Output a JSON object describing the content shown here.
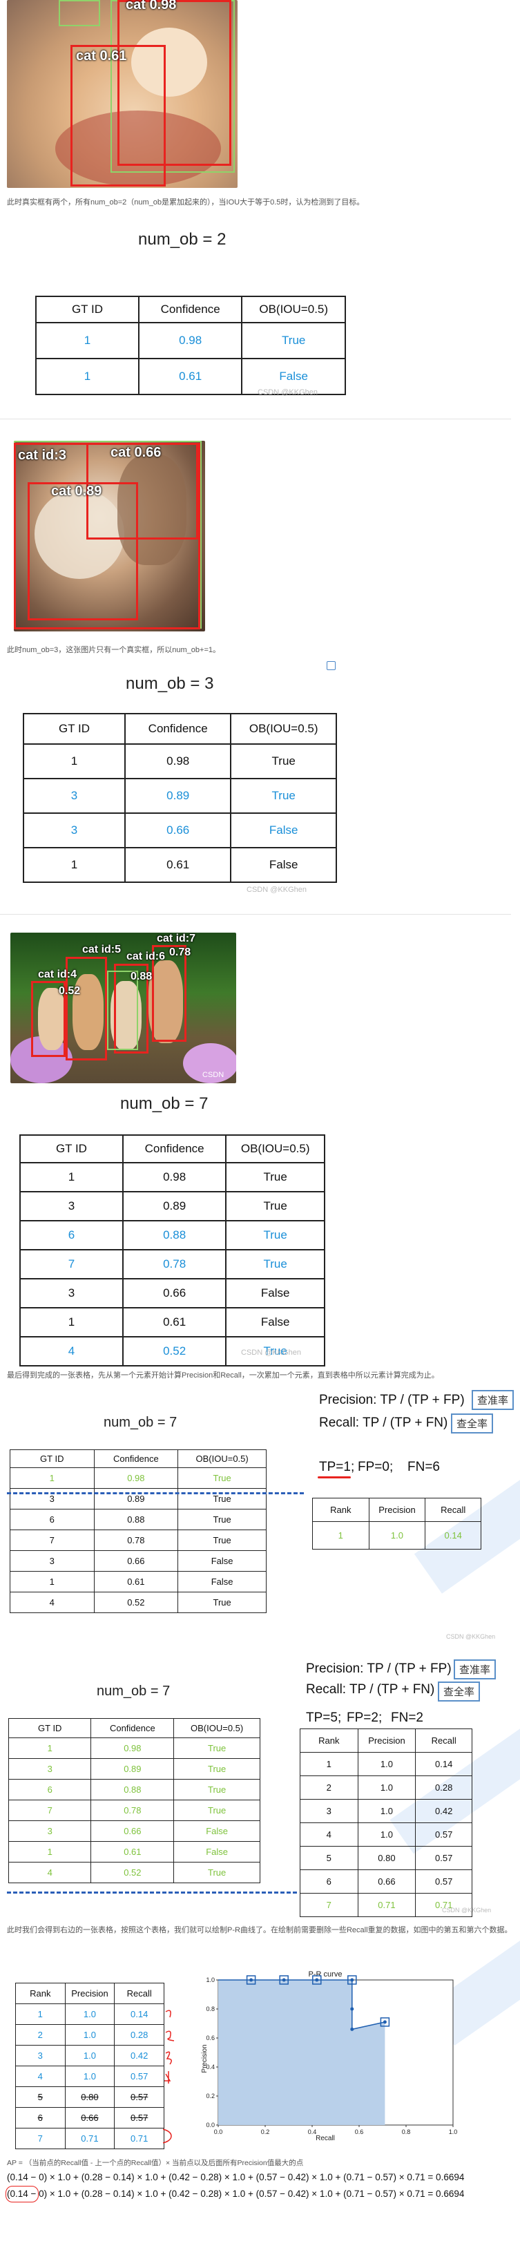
{
  "section1": {
    "labels": [
      "cat 0.98",
      "cat 0.61"
    ],
    "note": "此时真实框有两个，所有num_ob=2（num_ob是累加起来的），当IOU大于等于0.5时，认为检测到了目标。",
    "heading": "num_ob = 2",
    "headers": [
      "GT ID",
      "Confidence",
      "OB(IOU=0.5)"
    ],
    "rows": [
      [
        "1",
        "0.98",
        "True"
      ],
      [
        "1",
        "0.61",
        "False"
      ]
    ],
    "watermark": "CSDN @KKGhen"
  },
  "section2": {
    "labels": [
      "cat id:3",
      "cat 0.66",
      "cat 0.89"
    ],
    "note": "此时num_ob=3，这张图片只有一个真实框，所以num_ob+=1。",
    "heading": "num_ob = 3",
    "headers": [
      "GT ID",
      "Confidence",
      "OB(IOU=0.5)"
    ],
    "rows": [
      [
        "1",
        "0.98",
        "True"
      ],
      [
        "3",
        "0.89",
        "True"
      ],
      [
        "3",
        "0.66",
        "False"
      ],
      [
        "1",
        "0.61",
        "False"
      ]
    ],
    "watermark": "CSDN @KKGhen"
  },
  "section3": {
    "labels": [
      "cat id:7",
      "cat id:5",
      "cat id:6",
      "0.78",
      "cat id:4",
      "0.88",
      "0.52"
    ],
    "photo_mark": "CSDN",
    "heading": "num_ob = 7",
    "headers": [
      "GT ID",
      "Confidence",
      "OB(IOU=0.5)"
    ],
    "rows": [
      [
        "1",
        "0.98",
        "True"
      ],
      [
        "3",
        "0.89",
        "True"
      ],
      [
        "6",
        "0.88",
        "True"
      ],
      [
        "7",
        "0.78",
        "True"
      ],
      [
        "3",
        "0.66",
        "False"
      ],
      [
        "1",
        "0.61",
        "False"
      ],
      [
        "4",
        "0.52",
        "True"
      ]
    ],
    "watermark": "CSDN @KKGhen",
    "note": "最后得到完成的一张表格，先从第一个元素开始计算Precision和Recall，一次累加一个元素，直到表格中所以元素计算完成为止。"
  },
  "section4": {
    "heading": "num_ob = 7",
    "precision_formula": "Precision: TP / (TP + FP)",
    "recall_formula": "Recall: TP / (TP + FN)",
    "precision_button": "查准率",
    "recall_button": "查全率",
    "counts": [
      "TP=1;",
      "FP=0;",
      "FN=6"
    ],
    "headers": [
      "GT ID",
      "Confidence",
      "OB(IOU=0.5)"
    ],
    "rows": [
      [
        "1",
        "0.98",
        "True"
      ],
      [
        "3",
        "0.89",
        "True"
      ],
      [
        "6",
        "0.88",
        "True"
      ],
      [
        "7",
        "0.78",
        "True"
      ],
      [
        "3",
        "0.66",
        "False"
      ],
      [
        "1",
        "0.61",
        "False"
      ],
      [
        "4",
        "0.52",
        "True"
      ]
    ],
    "rank_headers": [
      "Rank",
      "Precision",
      "Recall"
    ],
    "rank_rows": [
      [
        "1",
        "1.0",
        "0.14"
      ]
    ],
    "watermark": "CSDN @KKGhen"
  },
  "section5": {
    "heading": "num_ob = 7",
    "precision_formula": "Precision: TP / (TP + FP)",
    "recall_formula": "Recall: TP / (TP + FN)",
    "precision_button": "查准率",
    "recall_button": "查全率",
    "counts": [
      "TP=5;",
      "FP=2;",
      "FN=2"
    ],
    "headers": [
      "GT ID",
      "Confidence",
      "OB(IOU=0.5)"
    ],
    "rows": [
      [
        "1",
        "0.98",
        "True"
      ],
      [
        "3",
        "0.89",
        "True"
      ],
      [
        "6",
        "0.88",
        "True"
      ],
      [
        "7",
        "0.78",
        "True"
      ],
      [
        "3",
        "0.66",
        "False"
      ],
      [
        "1",
        "0.61",
        "False"
      ],
      [
        "4",
        "0.52",
        "True"
      ]
    ],
    "rank_headers": [
      "Rank",
      "Precision",
      "Recall"
    ],
    "rank_rows": [
      [
        "1",
        "1.0",
        "0.14"
      ],
      [
        "2",
        "1.0",
        "0.28"
      ],
      [
        "3",
        "1.0",
        "0.42"
      ],
      [
        "4",
        "1.0",
        "0.57"
      ],
      [
        "5",
        "0.80",
        "0.57"
      ],
      [
        "6",
        "0.66",
        "0.57"
      ],
      [
        "7",
        "0.71",
        "0.71"
      ]
    ],
    "watermark": "CSDN @KKGhen",
    "note": "此时我们会得到右边的一张表格，按照这个表格，我们就可以绘制P-R曲线了。在绘制前需要删除一些Recall重复的数据，如图中的第五和第六个数据。"
  },
  "section6": {
    "rank_headers": [
      "Rank",
      "Precision",
      "Recall"
    ],
    "rank_rows": [
      [
        "1",
        "1.0",
        "0.14"
      ],
      [
        "2",
        "1.0",
        "0.28"
      ],
      [
        "3",
        "1.0",
        "0.42"
      ],
      [
        "4",
        "1.0",
        "0.57"
      ],
      [
        "5",
        "0.80",
        "0.57"
      ],
      [
        "6",
        "0.66",
        "0.57"
      ],
      [
        "7",
        "0.71",
        "0.71"
      ]
    ],
    "ap_note": "AP = （当前点的Recall值 - 上一个点的Recall值）× 当前点以及后面所有Precision值最大的点",
    "formula1": "(0.14 − 0) × 1.0 + (0.28 − 0.14) × 1.0 + (0.42 − 0.28) × 1.0 + (0.57 − 0.42) × 1.0 + (0.71 − 0.57) × 0.71 = 0.6694",
    "formula2": "(0.14 − 0) × 1.0 + (0.28 − 0.14) × 1.0 + (0.42 − 0.28) × 1.0 + (0.57 − 0.42) × 1.0 + (0.71 − 0.57) × 0.71 = 0.6694"
  },
  "chart_data": {
    "type": "area",
    "title": "P-R curve",
    "xlabel": "Recall",
    "ylabel": "Precision",
    "xlim": [
      0.0,
      1.0
    ],
    "ylim": [
      0.0,
      1.0
    ],
    "xticks": [
      "0.0",
      "0.2",
      "0.4",
      "0.6",
      "0.8",
      "1.0"
    ],
    "yticks": [
      "0.0",
      "0.2",
      "0.4",
      "0.6",
      "0.8",
      "1.0"
    ],
    "x": [
      0.0,
      0.14,
      0.28,
      0.42,
      0.57,
      0.57,
      0.57,
      0.71
    ],
    "y": [
      1.0,
      1.0,
      1.0,
      1.0,
      1.0,
      0.8,
      0.66,
      0.71
    ],
    "marked_points": [
      0.14,
      0.28,
      0.42,
      0.57,
      0.71
    ],
    "fill_color": "#b9d0ea",
    "line_color": "#1f5fb0"
  }
}
